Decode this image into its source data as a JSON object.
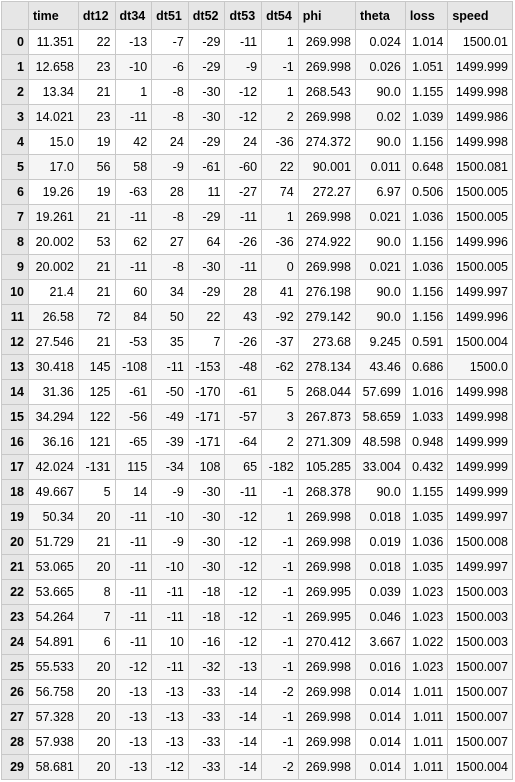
{
  "columns": [
    "time",
    "dt12",
    "dt34",
    "dt51",
    "dt52",
    "dt53",
    "dt54",
    "phi",
    "theta",
    "loss",
    "speed"
  ],
  "rows": [
    {
      "index": "0",
      "cells": [
        "11.351",
        "22",
        "-13",
        "-7",
        "-29",
        "-11",
        "1",
        "269.998",
        "0.024",
        "1.014",
        "1500.01"
      ]
    },
    {
      "index": "1",
      "cells": [
        "12.658",
        "23",
        "-10",
        "-6",
        "-29",
        "-9",
        "-1",
        "269.998",
        "0.026",
        "1.051",
        "1499.999"
      ]
    },
    {
      "index": "2",
      "cells": [
        "13.34",
        "21",
        "1",
        "-8",
        "-30",
        "-12",
        "1",
        "268.543",
        "90.0",
        "1.155",
        "1499.998"
      ]
    },
    {
      "index": "3",
      "cells": [
        "14.021",
        "23",
        "-11",
        "-8",
        "-30",
        "-12",
        "2",
        "269.998",
        "0.02",
        "1.039",
        "1499.986"
      ]
    },
    {
      "index": "4",
      "cells": [
        "15.0",
        "19",
        "42",
        "24",
        "-29",
        "24",
        "-36",
        "274.372",
        "90.0",
        "1.156",
        "1499.998"
      ]
    },
    {
      "index": "5",
      "cells": [
        "17.0",
        "56",
        "58",
        "-9",
        "-61",
        "-60",
        "22",
        "90.001",
        "0.011",
        "0.648",
        "1500.081"
      ]
    },
    {
      "index": "6",
      "cells": [
        "19.26",
        "19",
        "-63",
        "28",
        "11",
        "-27",
        "74",
        "272.27",
        "6.97",
        "0.506",
        "1500.005"
      ]
    },
    {
      "index": "7",
      "cells": [
        "19.261",
        "21",
        "-11",
        "-8",
        "-29",
        "-11",
        "1",
        "269.998",
        "0.021",
        "1.036",
        "1500.005"
      ]
    },
    {
      "index": "8",
      "cells": [
        "20.002",
        "53",
        "62",
        "27",
        "64",
        "-26",
        "-36",
        "274.922",
        "90.0",
        "1.156",
        "1499.996"
      ]
    },
    {
      "index": "9",
      "cells": [
        "20.002",
        "21",
        "-11",
        "-8",
        "-30",
        "-11",
        "0",
        "269.998",
        "0.021",
        "1.036",
        "1500.005"
      ]
    },
    {
      "index": "10",
      "cells": [
        "21.4",
        "21",
        "60",
        "34",
        "-29",
        "28",
        "41",
        "276.198",
        "90.0",
        "1.156",
        "1499.997"
      ]
    },
    {
      "index": "11",
      "cells": [
        "26.58",
        "72",
        "84",
        "50",
        "22",
        "43",
        "-92",
        "279.142",
        "90.0",
        "1.156",
        "1499.996"
      ]
    },
    {
      "index": "12",
      "cells": [
        "27.546",
        "21",
        "-53",
        "35",
        "7",
        "-26",
        "-37",
        "273.68",
        "9.245",
        "0.591",
        "1500.004"
      ]
    },
    {
      "index": "13",
      "cells": [
        "30.418",
        "145",
        "-108",
        "-11",
        "-153",
        "-48",
        "-62",
        "278.134",
        "43.46",
        "0.686",
        "1500.0"
      ]
    },
    {
      "index": "14",
      "cells": [
        "31.36",
        "125",
        "-61",
        "-50",
        "-170",
        "-61",
        "5",
        "268.044",
        "57.699",
        "1.016",
        "1499.998"
      ]
    },
    {
      "index": "15",
      "cells": [
        "34.294",
        "122",
        "-56",
        "-49",
        "-171",
        "-57",
        "3",
        "267.873",
        "58.659",
        "1.033",
        "1499.998"
      ]
    },
    {
      "index": "16",
      "cells": [
        "36.16",
        "121",
        "-65",
        "-39",
        "-171",
        "-64",
        "2",
        "271.309",
        "48.598",
        "0.948",
        "1499.999"
      ]
    },
    {
      "index": "17",
      "cells": [
        "42.024",
        "-131",
        "115",
        "-34",
        "108",
        "65",
        "-182",
        "105.285",
        "33.004",
        "0.432",
        "1499.999"
      ]
    },
    {
      "index": "18",
      "cells": [
        "49.667",
        "5",
        "14",
        "-9",
        "-30",
        "-11",
        "-1",
        "268.378",
        "90.0",
        "1.155",
        "1499.999"
      ]
    },
    {
      "index": "19",
      "cells": [
        "50.34",
        "20",
        "-11",
        "-10",
        "-30",
        "-12",
        "1",
        "269.998",
        "0.018",
        "1.035",
        "1499.997"
      ]
    },
    {
      "index": "20",
      "cells": [
        "51.729",
        "21",
        "-11",
        "-9",
        "-30",
        "-12",
        "-1",
        "269.998",
        "0.019",
        "1.036",
        "1500.008"
      ]
    },
    {
      "index": "21",
      "cells": [
        "53.065",
        "20",
        "-11",
        "-10",
        "-30",
        "-12",
        "-1",
        "269.998",
        "0.018",
        "1.035",
        "1499.997"
      ]
    },
    {
      "index": "22",
      "cells": [
        "53.665",
        "8",
        "-11",
        "-11",
        "-18",
        "-12",
        "-1",
        "269.995",
        "0.039",
        "1.023",
        "1500.003"
      ]
    },
    {
      "index": "23",
      "cells": [
        "54.264",
        "7",
        "-11",
        "-11",
        "-18",
        "-12",
        "-1",
        "269.995",
        "0.046",
        "1.023",
        "1500.003"
      ]
    },
    {
      "index": "24",
      "cells": [
        "54.891",
        "6",
        "-11",
        "10",
        "-16",
        "-12",
        "-1",
        "270.412",
        "3.667",
        "1.022",
        "1500.003"
      ]
    },
    {
      "index": "25",
      "cells": [
        "55.533",
        "20",
        "-12",
        "-11",
        "-32",
        "-13",
        "-1",
        "269.998",
        "0.016",
        "1.023",
        "1500.007"
      ]
    },
    {
      "index": "26",
      "cells": [
        "56.758",
        "20",
        "-13",
        "-13",
        "-33",
        "-14",
        "-2",
        "269.998",
        "0.014",
        "1.011",
        "1500.007"
      ]
    },
    {
      "index": "27",
      "cells": [
        "57.328",
        "20",
        "-13",
        "-13",
        "-33",
        "-14",
        "-1",
        "269.998",
        "0.014",
        "1.011",
        "1500.007"
      ]
    },
    {
      "index": "28",
      "cells": [
        "57.938",
        "20",
        "-13",
        "-13",
        "-33",
        "-14",
        "-1",
        "269.998",
        "0.014",
        "1.011",
        "1500.007"
      ]
    },
    {
      "index": "29",
      "cells": [
        "58.681",
        "20",
        "-13",
        "-12",
        "-33",
        "-14",
        "-2",
        "269.998",
        "0.014",
        "1.011",
        "1500.004"
      ]
    }
  ]
}
